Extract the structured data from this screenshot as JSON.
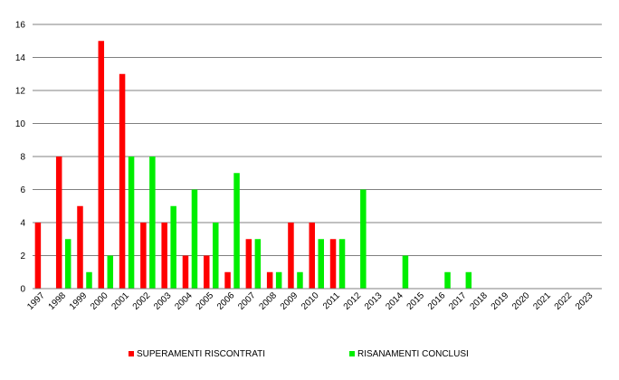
{
  "chart_data": {
    "type": "bar",
    "categories": [
      "1997",
      "1998",
      "1999",
      "2000",
      "2001",
      "2002",
      "2003",
      "2004",
      "2005",
      "2006",
      "2007",
      "2008",
      "2009",
      "2010",
      "2011",
      "2012",
      "2013",
      "2014",
      "2015",
      "2016",
      "2017",
      "2018",
      "2019",
      "2020",
      "2021",
      "2022",
      "2023"
    ],
    "series": [
      {
        "name": "SUPERAMENTI RISCONTRATI",
        "color": "#ff0000",
        "values": [
          4,
          8,
          5,
          15,
          13,
          4,
          4,
          2,
          2,
          1,
          3,
          1,
          4,
          4,
          3,
          0,
          0,
          0,
          0,
          0,
          0,
          0,
          0,
          0,
          0,
          0,
          0
        ]
      },
      {
        "name": "RISANAMENTI CONCLUSI",
        "color": "#00ee00",
        "values": [
          0,
          3,
          1,
          2,
          8,
          8,
          5,
          6,
          4,
          7,
          3,
          1,
          1,
          3,
          3,
          6,
          0,
          2,
          0,
          1,
          1,
          0,
          0,
          0,
          0,
          0,
          0
        ]
      }
    ],
    "ylim": [
      0,
      16
    ],
    "yticks": [
      0,
      2,
      4,
      6,
      8,
      10,
      12,
      14,
      16
    ],
    "grid": true,
    "legend_position": "bottom"
  }
}
